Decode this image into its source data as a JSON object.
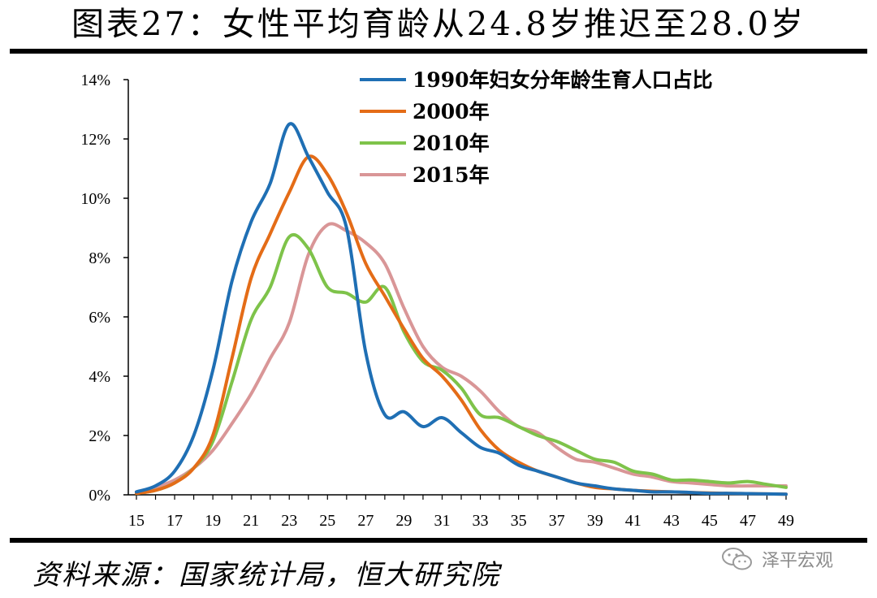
{
  "header": {
    "title": "图表27：女性平均育龄从24.8岁推迟至28.0岁"
  },
  "footer": {
    "source": "资料来源：国家统计局，恒大研究院"
  },
  "watermark": {
    "text": "泽平宏观",
    "icon": "wechat-icon"
  },
  "chart_data": {
    "type": "line",
    "title": "",
    "xlabel": "",
    "ylabel": "",
    "xlim": [
      15,
      49
    ],
    "ylim": [
      0,
      14
    ],
    "x_ticks": [
      15,
      17,
      19,
      21,
      23,
      25,
      27,
      29,
      31,
      33,
      35,
      37,
      39,
      41,
      43,
      45,
      47,
      49
    ],
    "y_ticks": [
      0,
      2,
      4,
      6,
      8,
      10,
      12,
      14
    ],
    "y_tick_format": "%",
    "legend_position": "top-right",
    "grid": false,
    "x": [
      15,
      16,
      17,
      18,
      19,
      20,
      21,
      22,
      23,
      24,
      25,
      26,
      27,
      28,
      29,
      30,
      31,
      32,
      33,
      34,
      35,
      36,
      37,
      38,
      39,
      40,
      41,
      42,
      43,
      44,
      45,
      46,
      47,
      48,
      49
    ],
    "series": [
      {
        "name": "1990年妇女分年龄生育人口占比",
        "color": "#1f6fb4",
        "values": [
          0.1,
          0.3,
          0.8,
          2.0,
          4.2,
          7.2,
          9.2,
          10.5,
          12.5,
          11.4,
          10.2,
          9.0,
          4.8,
          2.7,
          2.8,
          2.3,
          2.6,
          2.1,
          1.6,
          1.4,
          1.0,
          0.8,
          0.6,
          0.4,
          0.3,
          0.2,
          0.15,
          0.1,
          0.1,
          0.08,
          0.05,
          0.05,
          0.04,
          0.03,
          0.02
        ]
      },
      {
        "name": "2000年",
        "color": "#e46c17",
        "values": [
          0.05,
          0.15,
          0.4,
          0.9,
          2.0,
          4.6,
          7.3,
          8.8,
          10.2,
          11.4,
          10.8,
          9.5,
          7.8,
          6.7,
          5.6,
          4.6,
          4.0,
          3.2,
          2.2,
          1.5,
          1.1,
          0.8,
          0.6,
          0.4,
          0.25,
          0.2,
          0.15,
          0.12,
          0.1,
          0.08,
          0.06,
          0.05,
          0.04,
          0.03,
          0.02
        ]
      },
      {
        "name": "2010年",
        "color": "#7ec34a",
        "values": [
          0.05,
          0.15,
          0.4,
          0.9,
          1.8,
          3.8,
          5.9,
          7.0,
          8.7,
          8.3,
          7.0,
          6.8,
          6.5,
          7.0,
          5.5,
          4.5,
          4.2,
          3.6,
          2.7,
          2.6,
          2.3,
          2.0,
          1.8,
          1.5,
          1.2,
          1.1,
          0.8,
          0.7,
          0.5,
          0.5,
          0.45,
          0.4,
          0.45,
          0.35,
          0.25
        ]
      },
      {
        "name": "2015年",
        "color": "#d99697",
        "values": [
          0.1,
          0.25,
          0.5,
          0.9,
          1.5,
          2.4,
          3.4,
          4.6,
          5.8,
          8.1,
          9.1,
          8.9,
          8.5,
          7.8,
          6.3,
          5.0,
          4.3,
          4.0,
          3.5,
          2.8,
          2.3,
          2.1,
          1.6,
          1.2,
          1.1,
          0.9,
          0.7,
          0.6,
          0.45,
          0.4,
          0.35,
          0.3,
          0.3,
          0.3,
          0.3
        ]
      }
    ]
  }
}
